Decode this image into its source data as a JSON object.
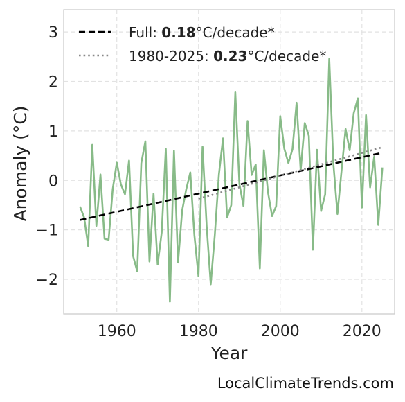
{
  "chart_data": {
    "type": "line",
    "xlabel": "Year",
    "ylabel": "Anomaly (°C)",
    "xlim": [
      1947,
      2028
    ],
    "ylim": [
      -2.7,
      3.45
    ],
    "xticks": [
      1960,
      1980,
      2000,
      2020
    ],
    "yticks": [
      -2,
      -1,
      0,
      1,
      2,
      3
    ],
    "ytick_labels": [
      "−2",
      "−1",
      "0",
      "1",
      "2",
      "3"
    ],
    "grid": true,
    "legend_position": "top-left",
    "series": [
      {
        "style": "solid",
        "color": "#88bb88",
        "x": [
          1951,
          1952,
          1953,
          1954,
          1955,
          1956,
          1957,
          1958,
          1959,
          1960,
          1961,
          1962,
          1963,
          1964,
          1965,
          1966,
          1967,
          1968,
          1969,
          1970,
          1971,
          1972,
          1973,
          1974,
          1975,
          1976,
          1977,
          1978,
          1979,
          1980,
          1981,
          1982,
          1983,
          1984,
          1985,
          1986,
          1987,
          1988,
          1989,
          1990,
          1991,
          1992,
          1993,
          1994,
          1995,
          1996,
          1997,
          1998,
          1999,
          2000,
          2001,
          2002,
          2003,
          2004,
          2005,
          2006,
          2007,
          2008,
          2009,
          2010,
          2011,
          2012,
          2013,
          2014,
          2015,
          2016,
          2017,
          2018,
          2019,
          2020,
          2021,
          2022,
          2023,
          2024,
          2025
        ],
        "y": [
          -0.53,
          -0.75,
          -1.33,
          0.72,
          -0.92,
          0.12,
          -1.18,
          -1.2,
          -0.18,
          0.36,
          -0.08,
          -0.28,
          0.4,
          -1.53,
          -1.84,
          0.35,
          0.79,
          -1.64,
          -0.27,
          -1.7,
          -1.05,
          0.64,
          -2.45,
          0.6,
          -1.66,
          -0.61,
          -0.18,
          0.16,
          -1.11,
          -1.94,
          0.68,
          -0.92,
          -2.1,
          -1.1,
          0.12,
          0.85,
          -0.75,
          -0.5,
          1.78,
          -0.07,
          -0.52,
          1.2,
          0.11,
          0.32,
          -1.78,
          0.61,
          -0.24,
          -0.72,
          -0.52,
          1.3,
          0.64,
          0.35,
          0.63,
          1.57,
          0.2,
          1.16,
          0.9,
          -1.4,
          0.62,
          -0.62,
          -0.28,
          2.46,
          0.35,
          -0.68,
          0.19,
          1.04,
          0.61,
          1.36,
          1.66,
          -0.55,
          1.32,
          -0.14,
          0.48,
          -0.9,
          0.26
        ]
      },
      {
        "name": "Full",
        "style": "dashed",
        "color": "#000000",
        "x": [
          1951,
          2025
        ],
        "y": [
          -0.8,
          0.56
        ]
      },
      {
        "name": "1980-2025",
        "style": "dotted",
        "color": "#888888",
        "x": [
          1980,
          2025
        ],
        "y": [
          -0.37,
          0.67
        ]
      }
    ],
    "legend": [
      {
        "prefix": "Full: ",
        "value": "0.18",
        "suffix": "°C/decade*"
      },
      {
        "prefix": "1980-2025: ",
        "value": "0.23",
        "suffix": "°C/decade*"
      }
    ]
  },
  "watermark": "LocalClimateTrends.com"
}
